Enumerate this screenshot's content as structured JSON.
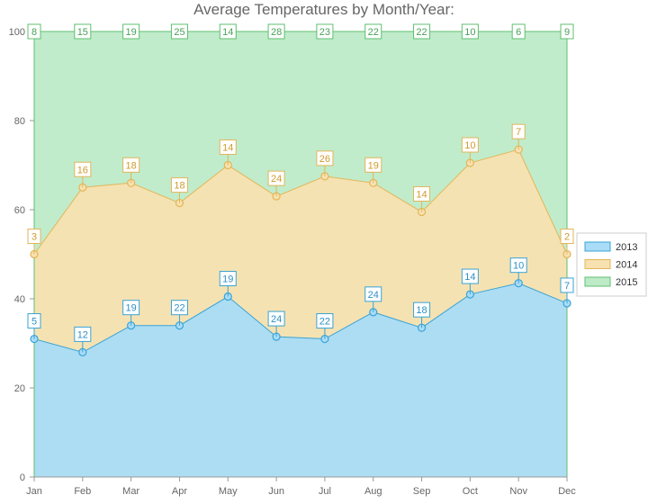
{
  "colors": {
    "s2013": {
      "fill": "#a9dcf7",
      "line": "#3aa3d5",
      "text": "#2e8fc7"
    },
    "s2014": {
      "fill": "#f8e1b0",
      "line": "#e2b65a",
      "text": "#d09a2e"
    },
    "s2015": {
      "fill": "#bdebc8",
      "line": "#5fbf6f",
      "text": "#4aa05a"
    },
    "grid": "#dcdcdc"
  },
  "chart_data": {
    "type": "area",
    "stacked": true,
    "title": "Average Temperatures by Month/Year:",
    "xlabel": "",
    "ylabel": "",
    "ylim": [
      0,
      100
    ],
    "yticks": [
      0,
      20,
      40,
      60,
      80,
      100
    ],
    "grid": true,
    "legend_position": "right",
    "categories": [
      "Jan",
      "Feb",
      "Mar",
      "Apr",
      "May",
      "Jun",
      "Jul",
      "Aug",
      "Sep",
      "Oct",
      "Nov",
      "Dec"
    ],
    "series": [
      {
        "name": "2013",
        "values": [
          5,
          12,
          19,
          22,
          19,
          24,
          22,
          24,
          18,
          14,
          10,
          7
        ]
      },
      {
        "name": "2014",
        "values": [
          3,
          16,
          18,
          18,
          14,
          24,
          26,
          19,
          14,
          10,
          7,
          2
        ]
      },
      {
        "name": "2015",
        "values": [
          8,
          15,
          19,
          25,
          14,
          28,
          23,
          22,
          22,
          10,
          6,
          9
        ]
      }
    ],
    "stack_totals": [
      [
        31,
        28,
        34,
        34,
        40.5,
        31.5,
        31,
        37,
        33.5,
        41,
        43.5,
        39
      ],
      [
        50,
        65,
        66,
        61.5,
        70,
        63,
        67.5,
        66,
        59.5,
        70.5,
        73.5,
        50
      ],
      [
        100,
        100,
        100,
        100,
        100,
        100,
        100,
        100,
        100,
        100,
        100,
        100
      ]
    ]
  }
}
